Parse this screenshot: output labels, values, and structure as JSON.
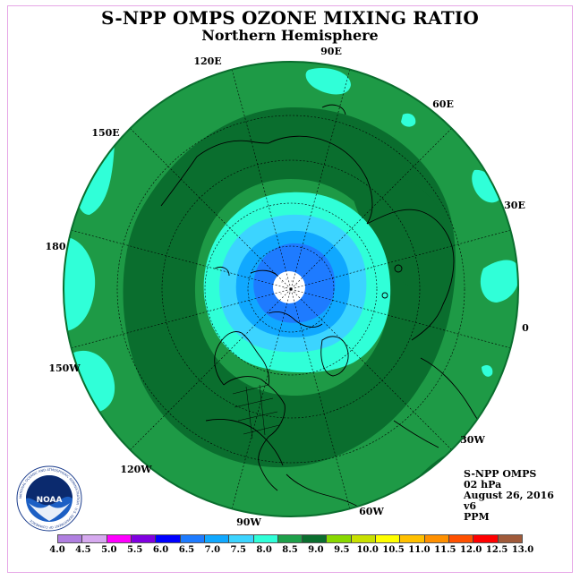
{
  "title": "S-NPP OMPS OZONE MIXING RATIO",
  "subtitle": "Northern Hemisphere",
  "longitude_labels": [
    "90E",
    "60E",
    "30E",
    "0",
    "30W",
    "60W",
    "90W",
    "120W",
    "150W",
    "180",
    "150E",
    "120E"
  ],
  "info": {
    "instrument": "S-NPP OMPS",
    "level": "02 hPa",
    "date": "August 26, 2016",
    "version": "v6",
    "units": "PPM"
  },
  "colorbar": {
    "labels": [
      "4.0",
      "4.5",
      "5.0",
      "5.5",
      "6.0",
      "6.5",
      "7.0",
      "7.5",
      "8.0",
      "8.5",
      "9.0",
      "9.5",
      "10.0",
      "10.5",
      "11.0",
      "11.5",
      "12.0",
      "12.5",
      "13.0"
    ],
    "colors": [
      "#b07fe0",
      "#d6a9ef",
      "#ff00ff",
      "#8000e0",
      "#0000ff",
      "#1e7bff",
      "#10a8ff",
      "#3cd4ff",
      "#30ffd8",
      "#1ea04a",
      "#0a6e2e",
      "#88d800",
      "#c8e000",
      "#ffff00",
      "#ffc000",
      "#ff9000",
      "#ff5000",
      "#ff0000",
      "#a05a3a"
    ]
  },
  "logo": {
    "name": "NOAA",
    "ring_text": "NATIONAL OCEANIC AND ATMOSPHERIC ADMINISTRATION · U.S. DEPARTMENT OF COMMERCE"
  },
  "map_colors": {
    "ring_dark": "#0a6e2e",
    "ring_mid": "#1e9a46",
    "cyan": "#30ffd8",
    "light_blue": "#3cd4ff",
    "blue": "#1e7bff",
    "deep_blue": "#1060e0",
    "pole": "#ffffff"
  }
}
